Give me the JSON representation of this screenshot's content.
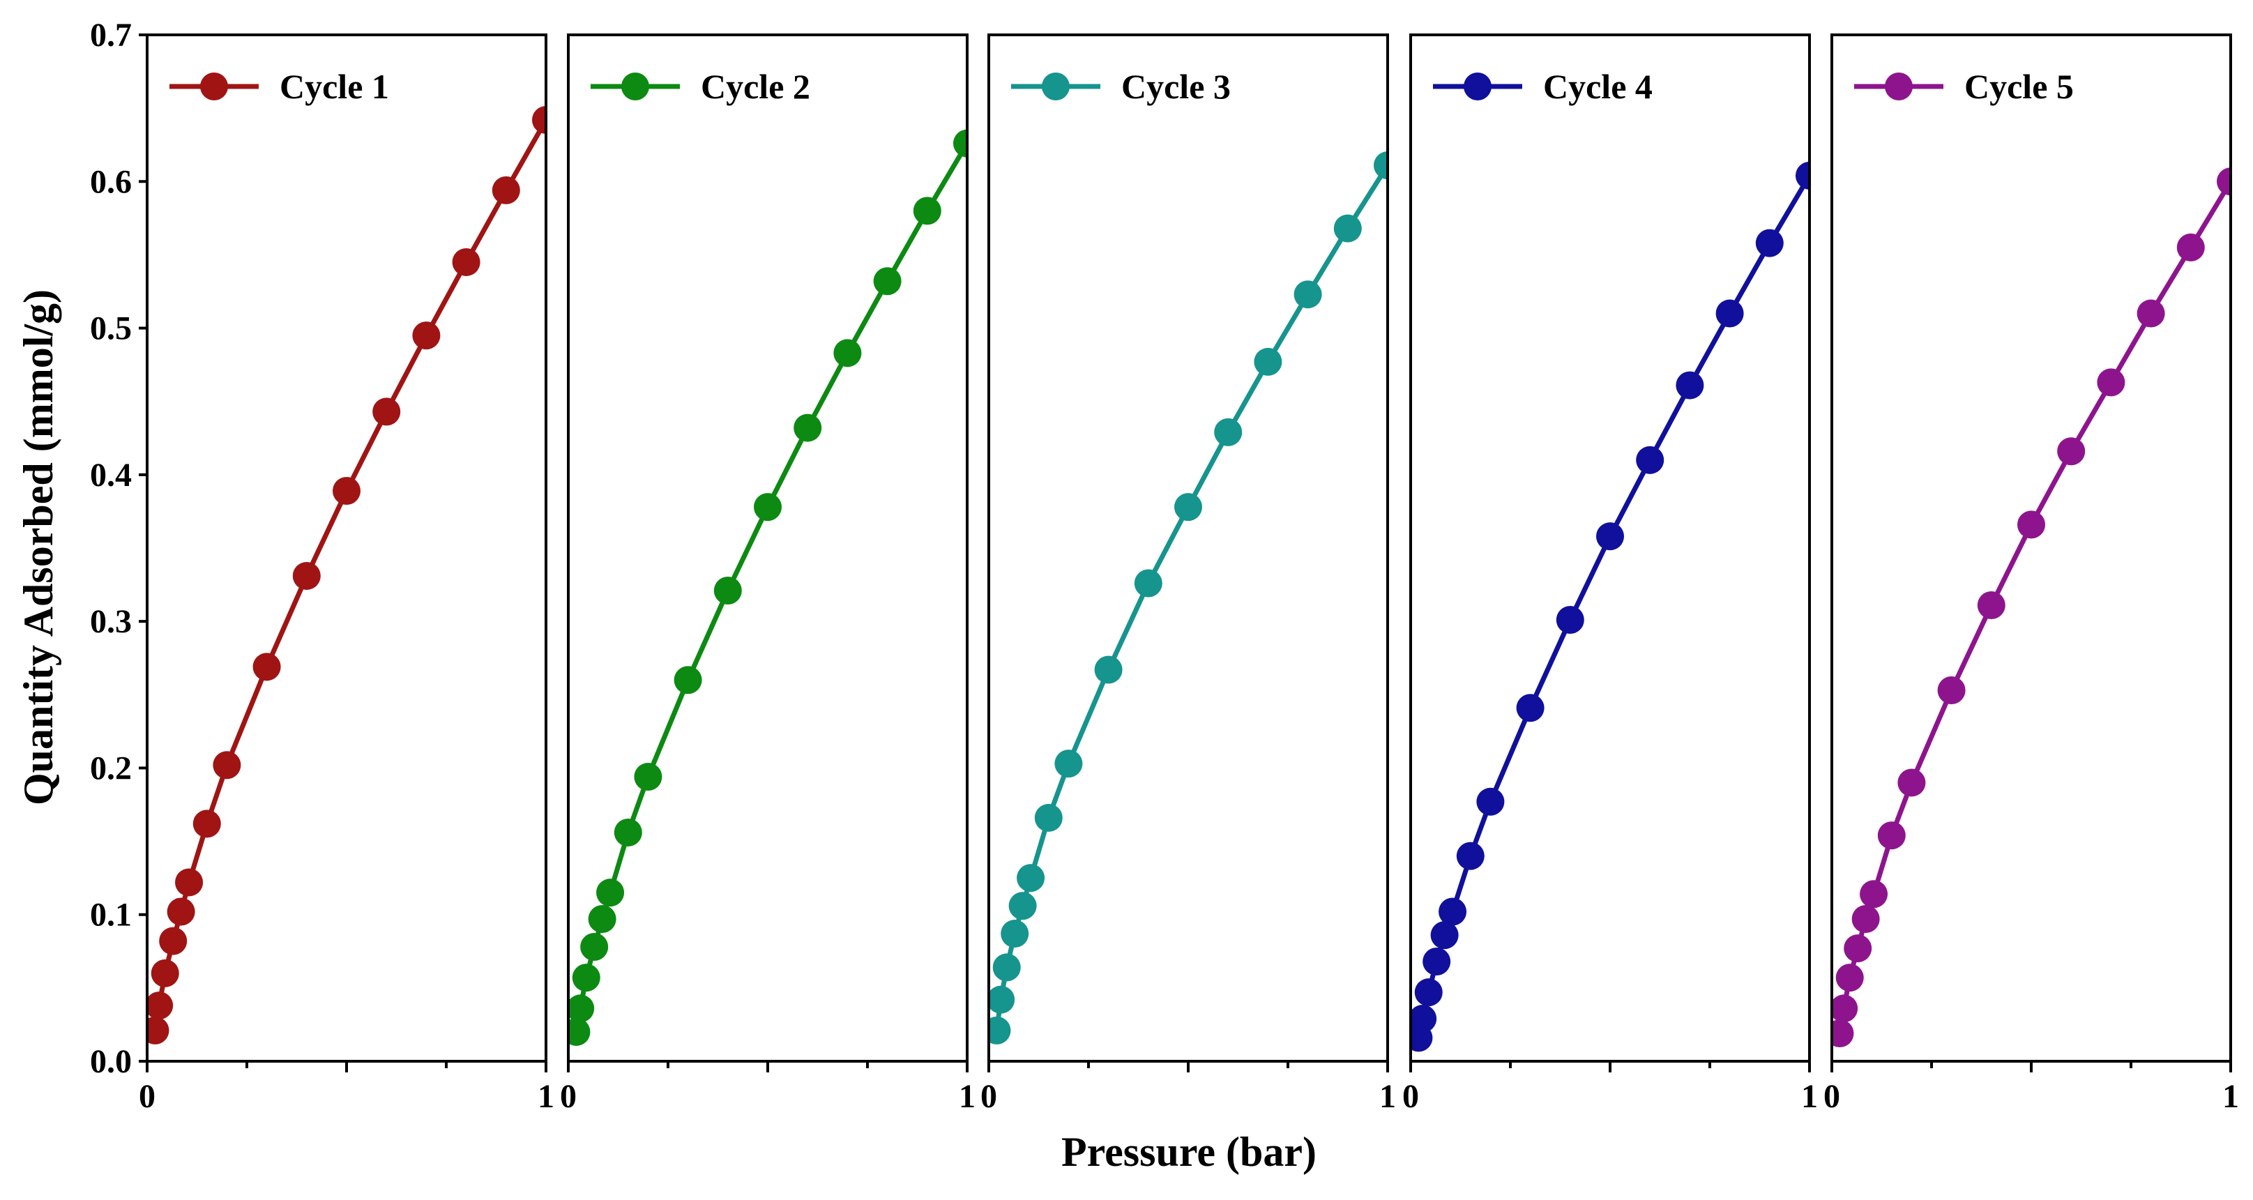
{
  "chart_data": {
    "type": "line",
    "xlabel": "Pressure (bar)",
    "ylabel": "Quantity Adsorbed (mmol/g)",
    "xlim": [
      0,
      1
    ],
    "ylim": [
      0,
      0.7
    ],
    "yticks": [
      "0.0",
      "0.1",
      "0.2",
      "0.3",
      "0.4",
      "0.5",
      "0.6",
      "0.7"
    ],
    "xtick_labels": [
      "0",
      "1"
    ],
    "legend_position": "top-left",
    "series": [
      {
        "name": "Cycle 1",
        "color": "#a01414",
        "x": [
          0.02,
          0.03,
          0.045,
          0.065,
          0.085,
          0.105,
          0.15,
          0.2,
          0.3,
          0.4,
          0.5,
          0.6,
          0.7,
          0.8,
          0.9,
          1.0
        ],
        "y": [
          0.021,
          0.038,
          0.06,
          0.082,
          0.102,
          0.122,
          0.162,
          0.202,
          0.269,
          0.331,
          0.389,
          0.443,
          0.495,
          0.545,
          0.594,
          0.642
        ]
      },
      {
        "name": "Cycle 2",
        "color": "#0c8a12",
        "x": [
          0.02,
          0.03,
          0.045,
          0.065,
          0.085,
          0.105,
          0.15,
          0.2,
          0.3,
          0.4,
          0.5,
          0.6,
          0.7,
          0.8,
          0.9,
          1.0
        ],
        "y": [
          0.02,
          0.036,
          0.057,
          0.078,
          0.097,
          0.115,
          0.156,
          0.194,
          0.26,
          0.321,
          0.378,
          0.432,
          0.483,
          0.532,
          0.58,
          0.626
        ]
      },
      {
        "name": "Cycle 3",
        "color": "#16948e",
        "x": [
          0.02,
          0.03,
          0.045,
          0.065,
          0.085,
          0.105,
          0.15,
          0.2,
          0.3,
          0.4,
          0.5,
          0.6,
          0.7,
          0.8,
          0.9,
          1.0
        ],
        "y": [
          0.021,
          0.042,
          0.064,
          0.087,
          0.106,
          0.125,
          0.166,
          0.203,
          0.267,
          0.326,
          0.378,
          0.429,
          0.477,
          0.523,
          0.568,
          0.611
        ]
      },
      {
        "name": "Cycle 4",
        "color": "#10109c",
        "x": [
          0.02,
          0.03,
          0.045,
          0.065,
          0.085,
          0.105,
          0.15,
          0.2,
          0.3,
          0.4,
          0.5,
          0.6,
          0.7,
          0.8,
          0.9,
          1.0
        ],
        "y": [
          0.016,
          0.029,
          0.047,
          0.068,
          0.086,
          0.102,
          0.14,
          0.177,
          0.241,
          0.301,
          0.358,
          0.41,
          0.461,
          0.51,
          0.558,
          0.604
        ]
      },
      {
        "name": "Cycle 5",
        "color": "#8e148e",
        "x": [
          0.02,
          0.03,
          0.045,
          0.065,
          0.085,
          0.105,
          0.15,
          0.2,
          0.3,
          0.4,
          0.5,
          0.6,
          0.7,
          0.8,
          0.9,
          1.0
        ],
        "y": [
          0.019,
          0.036,
          0.057,
          0.077,
          0.097,
          0.114,
          0.154,
          0.19,
          0.253,
          0.311,
          0.366,
          0.416,
          0.463,
          0.51,
          0.555,
          0.6
        ]
      }
    ]
  }
}
